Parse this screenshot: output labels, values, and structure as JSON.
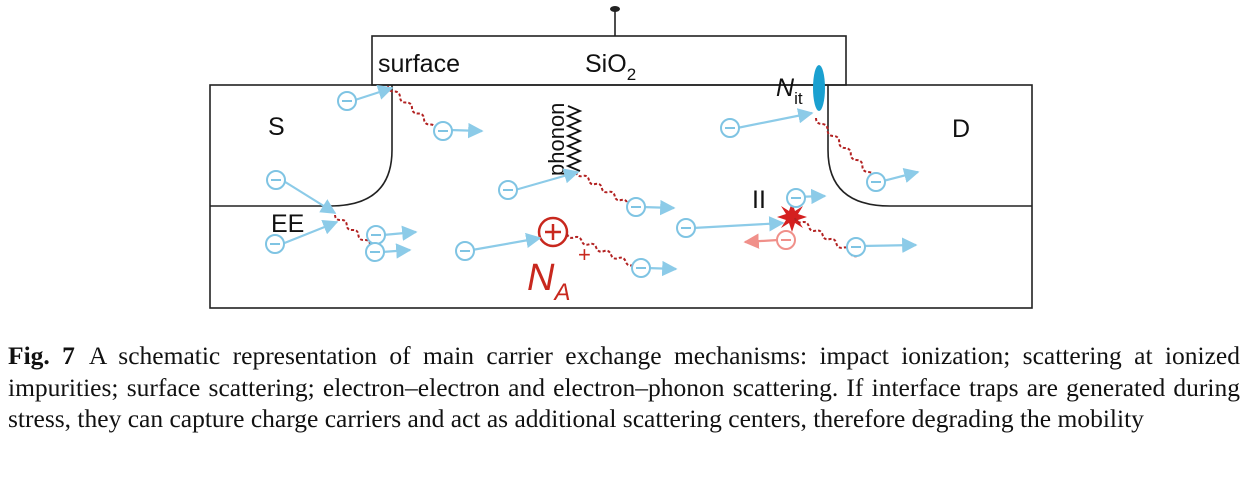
{
  "figure": {
    "labels": {
      "oxide_base": "SiO",
      "oxide_sub": "2",
      "surface": "surface",
      "source": "S",
      "drain": "D",
      "phonon": "phonon",
      "ee": "EE",
      "ii": "II",
      "nit_base": "N",
      "nit_sub": "it",
      "na_base": "N",
      "na_sub": "A",
      "na_sup": "+",
      "electron_symbol": "⊖",
      "hole_symbol": "⊖",
      "ion_symbol": "⊕"
    },
    "colors": {
      "electron": "#7fc4e3",
      "arrow": "#8ccbe8",
      "scatter_path": "#b22222",
      "ion": "#c8281e",
      "interface_trap": "#1aa0d0",
      "hole": "#f0908a",
      "impact_star": "#d42020",
      "outline": "#222222"
    },
    "icons": [
      "electron-icon",
      "ionized-impurity-icon",
      "interface-trap-icon",
      "impact-ionization-star-icon",
      "phonon-spring-icon",
      "gate-contact-icon"
    ]
  },
  "caption": {
    "label": "Fig. 7",
    "text": "A schematic representation of main carrier exchange mechanisms: impact ionization; scattering at ionized impurities; surface scattering; electron–electron and electron–phonon scattering. If interface traps are generated during stress, they can capture charge carriers and act as additional scattering centers, therefore degrading the mobility"
  }
}
